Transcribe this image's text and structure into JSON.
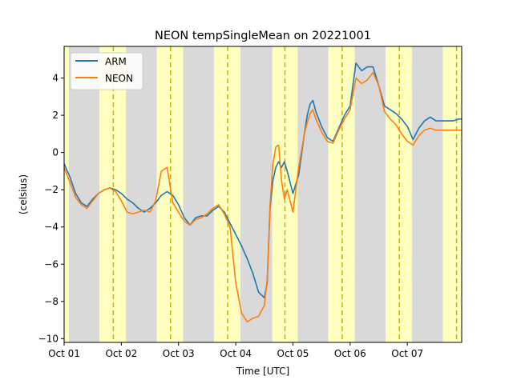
{
  "chart_data": {
    "type": "line",
    "title": "NEON tempSingleMean on 20221001",
    "xlabel": "Time [UTC]",
    "ylabel": "(celsius)",
    "xlim": [
      0,
      6.95
    ],
    "ylim": [
      -10.2,
      5.7
    ],
    "x_ticks": [
      {
        "value": 0,
        "label": "Oct 01"
      },
      {
        "value": 1,
        "label": "Oct 02"
      },
      {
        "value": 2,
        "label": "Oct 03"
      },
      {
        "value": 3,
        "label": "Oct 04"
      },
      {
        "value": 4,
        "label": "Oct 05"
      },
      {
        "value": 5,
        "label": "Oct 06"
      },
      {
        "value": 6,
        "label": "Oct 07"
      }
    ],
    "y_ticks": [
      {
        "value": -10,
        "label": "−10"
      },
      {
        "value": -8,
        "label": "−8"
      },
      {
        "value": -6,
        "label": "−6"
      },
      {
        "value": -4,
        "label": "−4"
      },
      {
        "value": -2,
        "label": "−2"
      },
      {
        "value": 0,
        "label": "0"
      },
      {
        "value": 2,
        "label": "2"
      },
      {
        "value": 4,
        "label": "4"
      }
    ],
    "night_shading": [
      [
        0.08,
        0.62
      ],
      [
        1.08,
        1.62
      ],
      [
        2.08,
        2.62
      ],
      [
        3.08,
        3.64
      ],
      [
        4.08,
        4.62
      ],
      [
        5.08,
        5.62
      ],
      [
        6.08,
        6.62
      ]
    ],
    "day_shading": [
      [
        0.0,
        0.08
      ],
      [
        0.62,
        1.08
      ],
      [
        1.62,
        2.08
      ],
      [
        2.62,
        3.08
      ],
      [
        3.64,
        4.08
      ],
      [
        4.62,
        5.08
      ],
      [
        5.62,
        6.08
      ],
      [
        6.62,
        6.95
      ]
    ],
    "solar_noon_lines": [
      0.86,
      1.86,
      2.86,
      3.86,
      4.86,
      5.86,
      6.86
    ],
    "legend": {
      "placement": "top-left",
      "entries": [
        "ARM",
        "NEON"
      ]
    },
    "colors": {
      "arm": "#1f77b4",
      "neon": "#ff7f0e",
      "night": "#d9d9d9",
      "day": "#ffffc0",
      "noon": "#c8b400"
    },
    "series": [
      {
        "name": "ARM",
        "x": [
          0.0,
          0.1,
          0.2,
          0.3,
          0.4,
          0.5,
          0.6,
          0.7,
          0.8,
          0.9,
          1.0,
          1.1,
          1.2,
          1.3,
          1.4,
          1.5,
          1.6,
          1.7,
          1.8,
          1.9,
          2.0,
          2.1,
          2.2,
          2.3,
          2.4,
          2.5,
          2.6,
          2.7,
          2.8,
          2.9,
          3.0,
          3.1,
          3.2,
          3.3,
          3.4,
          3.5,
          3.55,
          3.6,
          3.65,
          3.7,
          3.75,
          3.8,
          3.85,
          3.9,
          4.0,
          4.1,
          4.2,
          4.25,
          4.3,
          4.35,
          4.4,
          4.5,
          4.6,
          4.7,
          4.8,
          4.9,
          5.0,
          5.1,
          5.2,
          5.3,
          5.4,
          5.5,
          5.6,
          5.7,
          5.8,
          5.9,
          6.0,
          6.1,
          6.2,
          6.3,
          6.4,
          6.5,
          6.6,
          6.7,
          6.8,
          6.9,
          6.95
        ],
        "y": [
          -0.6,
          -1.3,
          -2.2,
          -2.7,
          -2.9,
          -2.5,
          -2.2,
          -2.0,
          -1.9,
          -2.0,
          -2.2,
          -2.5,
          -2.7,
          -3.0,
          -3.2,
          -3.0,
          -2.7,
          -2.3,
          -2.1,
          -2.3,
          -2.8,
          -3.5,
          -3.9,
          -3.5,
          -3.4,
          -3.4,
          -3.1,
          -2.9,
          -3.2,
          -3.8,
          -4.4,
          -5.0,
          -5.7,
          -6.5,
          -7.5,
          -7.8,
          -7.0,
          -3.0,
          -1.5,
          -0.8,
          -0.5,
          -0.8,
          -0.5,
          -1.0,
          -2.2,
          -1.2,
          1.0,
          2.0,
          2.6,
          2.8,
          2.2,
          1.4,
          0.8,
          0.6,
          1.3,
          2.0,
          2.5,
          4.8,
          4.4,
          4.6,
          4.6,
          3.6,
          2.5,
          2.3,
          2.1,
          1.8,
          1.4,
          0.7,
          1.3,
          1.7,
          1.9,
          1.7,
          1.7,
          1.7,
          1.7,
          1.8,
          1.8
        ]
      },
      {
        "name": "NEON",
        "x": [
          0.0,
          0.1,
          0.2,
          0.3,
          0.4,
          0.5,
          0.6,
          0.7,
          0.8,
          0.9,
          1.0,
          1.1,
          1.2,
          1.3,
          1.4,
          1.5,
          1.6,
          1.7,
          1.8,
          1.9,
          2.0,
          2.1,
          2.2,
          2.3,
          2.4,
          2.5,
          2.6,
          2.7,
          2.8,
          2.9,
          3.0,
          3.1,
          3.2,
          3.3,
          3.4,
          3.5,
          3.55,
          3.6,
          3.65,
          3.7,
          3.75,
          3.8,
          3.85,
          3.9,
          4.0,
          4.1,
          4.2,
          4.25,
          4.3,
          4.35,
          4.4,
          4.5,
          4.6,
          4.7,
          4.8,
          4.9,
          5.0,
          5.1,
          5.2,
          5.3,
          5.4,
          5.5,
          5.6,
          5.7,
          5.8,
          5.9,
          6.0,
          6.1,
          6.2,
          6.3,
          6.4,
          6.5,
          6.6,
          6.7,
          6.8,
          6.9,
          6.95
        ],
        "y": [
          -0.8,
          -1.6,
          -2.4,
          -2.8,
          -3.0,
          -2.6,
          -2.2,
          -2.0,
          -1.9,
          -2.1,
          -2.6,
          -3.2,
          -3.3,
          -3.2,
          -3.1,
          -3.2,
          -2.6,
          -1.0,
          -0.8,
          -2.7,
          -3.2,
          -3.7,
          -3.9,
          -3.6,
          -3.5,
          -3.3,
          -3.0,
          -2.8,
          -3.3,
          -4.0,
          -7.0,
          -8.6,
          -9.1,
          -8.9,
          -8.8,
          -8.2,
          -6.8,
          -2.8,
          -0.6,
          0.3,
          0.4,
          -1.5,
          -2.5,
          -2.0,
          -3.2,
          -0.8,
          1.0,
          1.6,
          2.1,
          2.3,
          1.8,
          1.1,
          0.6,
          0.5,
          1.2,
          1.8,
          2.3,
          4.0,
          3.7,
          3.9,
          4.3,
          3.6,
          2.2,
          1.8,
          1.5,
          1.0,
          0.6,
          0.4,
          0.9,
          1.2,
          1.3,
          1.2,
          1.2,
          1.2,
          1.2,
          1.2,
          1.2
        ]
      }
    ]
  }
}
